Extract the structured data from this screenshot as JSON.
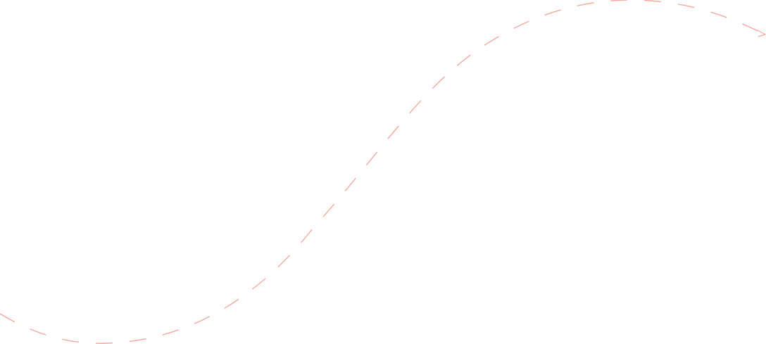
{
  "decoration": {
    "type": "dashed-arrow-curve",
    "stroke_color": "#f4a9a2",
    "line_style": "dashed",
    "direction": "left-to-right",
    "end_marker": "arrowhead"
  }
}
